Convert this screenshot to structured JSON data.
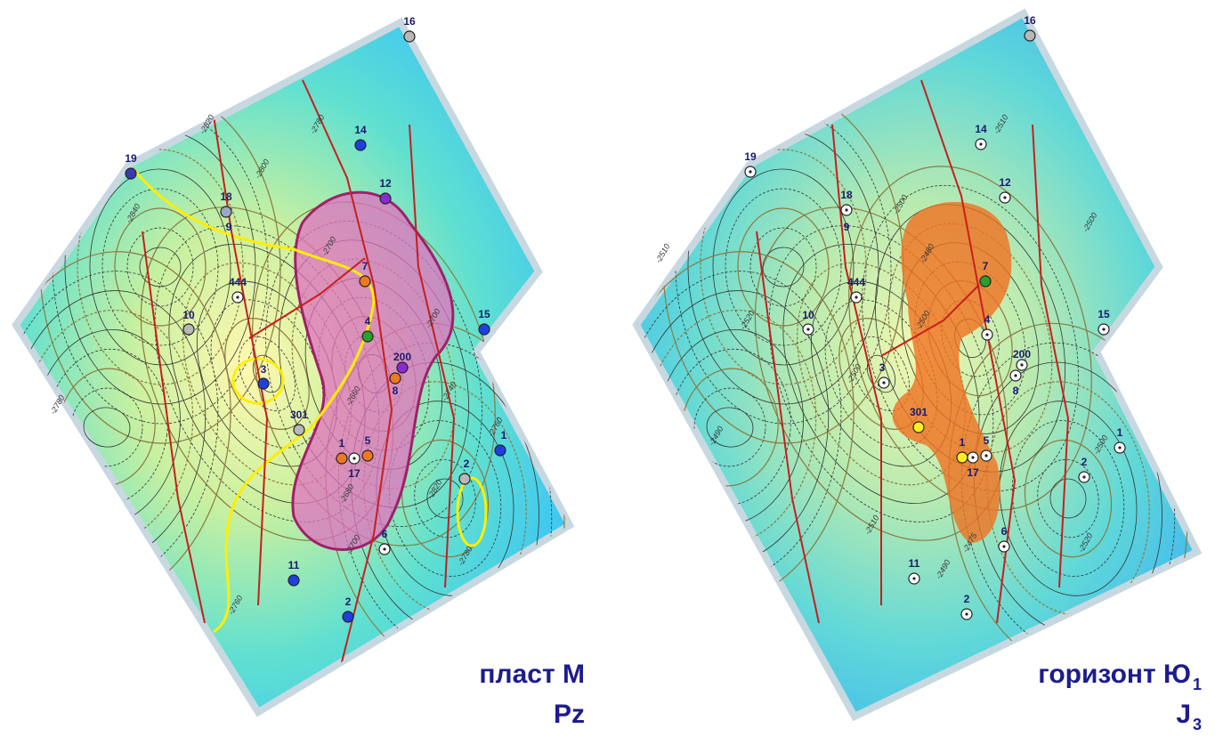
{
  "maps": [
    {
      "title": "пласт М",
      "subtitle": "Pz",
      "wells": [
        {
          "label": "16",
          "color": "#b8b8b8"
        },
        {
          "label": "19",
          "color": "#3a3ab0"
        },
        {
          "label": "14",
          "color": "#1f3fe0"
        },
        {
          "label": "12",
          "color": "#8a2ad0"
        },
        {
          "label": "18",
          "color": "#9aa8c8"
        },
        {
          "label": "9"
        },
        {
          "label": "444",
          "color": "#ffffff",
          "symbol": "dot"
        },
        {
          "label": "10",
          "color": "#b8b8b8"
        },
        {
          "label": "7",
          "color": "#f07820"
        },
        {
          "label": "4",
          "color": "#2aa02a"
        },
        {
          "label": "15",
          "color": "#1f3fe0"
        },
        {
          "label": "200",
          "color": "#8a2ad0"
        },
        {
          "label": "8",
          "color": "#f07820"
        },
        {
          "label": "3",
          "color": "#1f3fe0"
        },
        {
          "label": "301",
          "color": "#b8b8b8"
        },
        {
          "label": "1",
          "color": "#f07820"
        },
        {
          "label": "17",
          "color": "#ffffff",
          "symbol": "dot"
        },
        {
          "label": "5",
          "color": "#f07820"
        },
        {
          "label": "1",
          "color": "#1f3fe0"
        },
        {
          "label": "2",
          "color": "#b8b8b8"
        },
        {
          "label": "6",
          "color": "#ffffff",
          "symbol": "dot"
        },
        {
          "label": "11",
          "color": "#1f3fe0"
        },
        {
          "label": "2",
          "color": "#1f3fe0"
        }
      ],
      "contour_labels": [
        "-2820",
        "-2840",
        "-2800",
        "-2780",
        "-2700",
        "-2660",
        "-2740",
        "-2760",
        "-2820",
        "-2780",
        "-2760",
        "-2780",
        "-2700",
        "-2680",
        "-2700"
      ]
    },
    {
      "title": "горизонт Ю",
      "title_subscript": "1",
      "subtitle": "J",
      "subtitle_subscript": "3",
      "wells": [
        {
          "label": "16",
          "color": "#b8b8b8"
        },
        {
          "label": "19",
          "color": "#ffffff",
          "symbol": "dot"
        },
        {
          "label": "14",
          "color": "#ffffff",
          "symbol": "dot"
        },
        {
          "label": "12",
          "color": "#ffffff",
          "symbol": "dot"
        },
        {
          "label": "18",
          "color": "#ffffff",
          "symbol": "dot"
        },
        {
          "label": "9"
        },
        {
          "label": "444",
          "color": "#ffffff",
          "symbol": "dot"
        },
        {
          "label": "10",
          "color": "#ffffff",
          "symbol": "dot"
        },
        {
          "label": "7",
          "color": "#2aa02a"
        },
        {
          "label": "4",
          "color": "#ffffff",
          "symbol": "dot"
        },
        {
          "label": "15",
          "color": "#ffffff",
          "symbol": "dot"
        },
        {
          "label": "200",
          "color": "#ffffff",
          "symbol": "dot"
        },
        {
          "label": "8",
          "color": "#ffffff",
          "symbol": "dot"
        },
        {
          "label": "3",
          "color": "#ffffff",
          "symbol": "dot"
        },
        {
          "label": "301",
          "color": "#ffee20"
        },
        {
          "label": "1",
          "color": "#ffee20"
        },
        {
          "label": "17",
          "color": "#ffffff",
          "symbol": "dot"
        },
        {
          "label": "5",
          "color": "#ffffff",
          "symbol": "dot"
        },
        {
          "label": "1",
          "color": "#ffffff",
          "symbol": "dot"
        },
        {
          "label": "2",
          "color": "#ffffff",
          "symbol": "dot"
        },
        {
          "label": "6",
          "color": "#ffffff",
          "symbol": "dot"
        },
        {
          "label": "11",
          "color": "#ffffff",
          "symbol": "dot"
        },
        {
          "label": "2",
          "color": "#ffffff",
          "symbol": "dot"
        }
      ],
      "contour_labels": [
        "-2510",
        "-2500",
        "-2480",
        "-2510",
        "-2520",
        "-2500",
        "-2500",
        "-2490",
        "-2475",
        "-2490",
        "-2500",
        "-2520",
        "-2510",
        "-2500"
      ]
    }
  ]
}
